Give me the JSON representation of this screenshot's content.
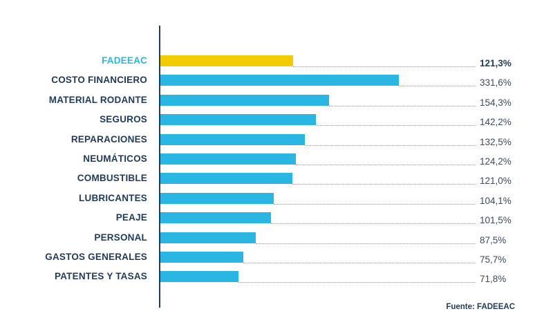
{
  "chart_data": {
    "type": "bar",
    "orientation": "horizontal",
    "categories": [
      "FADEEAC",
      "COSTO FINANCIERO",
      "MATERIAL RODANTE",
      "SEGUROS",
      "REPARACIONES",
      "NEUMÁTICOS",
      "COMBUSTIBLE",
      "LUBRICANTES",
      "PEAJE",
      "PERSONAL",
      "GASTOS GENERALES",
      "PATENTES Y TASAS"
    ],
    "values": [
      121.3,
      331.6,
      154.3,
      142.2,
      132.5,
      124.2,
      121.0,
      104.1,
      101.5,
      87.5,
      75.7,
      71.8
    ],
    "value_labels": [
      "121,3%",
      "331,6%",
      "154,3%",
      "142,2%",
      "132,5%",
      "124,2%",
      "121,0%",
      "104,1%",
      "101,5%",
      "87,5%",
      "75,7%",
      "71,8%"
    ],
    "highlight": "FADEEAC",
    "colors": {
      "highlight_bar": "#f0cc00",
      "highlight_label": "#29b6e3",
      "bar": "#29b6e3",
      "text": "#1f3a5f"
    },
    "grid": false,
    "source": "Fuente: FADEEAC"
  }
}
